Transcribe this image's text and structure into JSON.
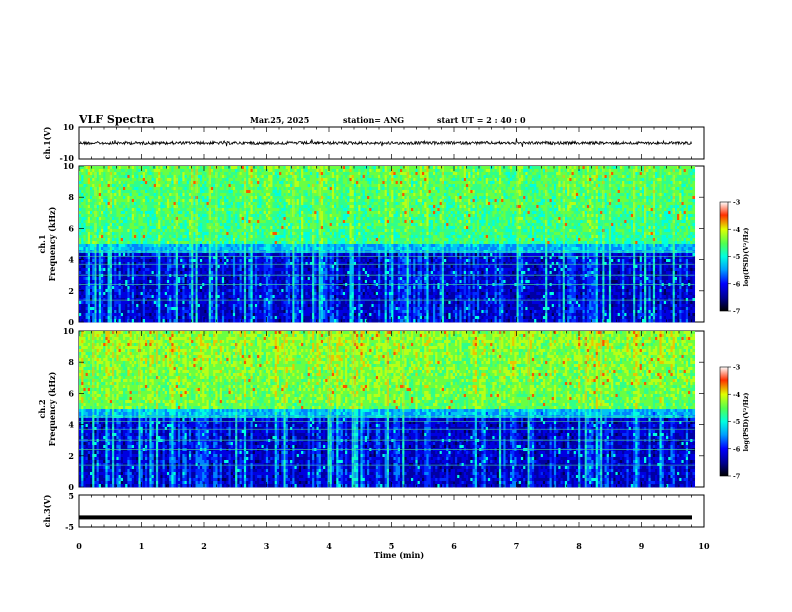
{
  "header": {
    "title": "VLF Spectra",
    "date": "Mar.25, 2025",
    "station": "station= ANG",
    "start": "start  UT =   2 : 40 : 0"
  },
  "chart_data": [
    {
      "type": "line",
      "name": "ch1-waveform",
      "ylabel": "ch.1(V)",
      "ylim": [
        -10,
        10
      ],
      "yticks": [
        "10",
        "-10"
      ],
      "xlim": [
        0,
        10
      ],
      "baseline": 0
    },
    {
      "type": "heatmap",
      "name": "ch1-spectrogram",
      "ylabel_line1": "ch.1",
      "ylabel_line2": "Frequency (kHz)",
      "ylim": [
        0,
        10
      ],
      "yticks": [
        "0",
        "2",
        "4",
        "6",
        "8",
        "10"
      ],
      "xlim": [
        0,
        9.85
      ],
      "colorbar": {
        "label": "log(PSD)(V²/Hz)",
        "range": [
          -7,
          -3
        ],
        "ticks": [
          "-3",
          "-4",
          "-5",
          "-6",
          "-7"
        ]
      }
    },
    {
      "type": "heatmap",
      "name": "ch2-spectrogram",
      "ylabel_line1": "ch.2",
      "ylabel_line2": "Frequency (kHz)",
      "ylim": [
        0,
        10
      ],
      "yticks": [
        "0",
        "2",
        "4",
        "6",
        "8",
        "10"
      ],
      "xlim": [
        0,
        9.85
      ],
      "colorbar": {
        "label": "log(PSD)(V²/Hz)",
        "range": [
          -7,
          -3
        ],
        "ticks": [
          "-3",
          "-4",
          "-5",
          "-6",
          "-7"
        ]
      }
    },
    {
      "type": "line",
      "name": "ch3-waveform",
      "ylabel": "ch.3(V)",
      "ylim": [
        -5,
        5
      ],
      "yticks": [
        "5",
        "-5"
      ],
      "xlim": [
        0,
        10
      ],
      "baseline": -2
    }
  ],
  "xaxis": {
    "label": "Time (min)",
    "ticks": [
      "0",
      "1",
      "2",
      "3",
      "4",
      "5",
      "6",
      "7",
      "8",
      "9",
      "10"
    ]
  }
}
